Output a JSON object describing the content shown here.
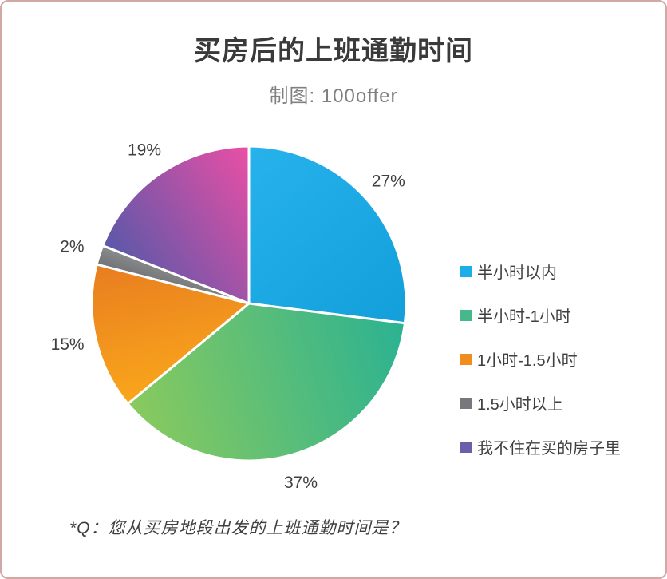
{
  "chart_data": {
    "type": "pie",
    "title": "买房后的上班通勤时间",
    "subtitle": "制图: 100offer",
    "annotation": "*Q：您从买房地段出发的上班通勤时间是？",
    "legend_position": "right",
    "start_angle_deg": 0,
    "direction": "clockwise",
    "units": "%",
    "slices": [
      {
        "label": "半小时以内",
        "value": 27,
        "percent_label": "27%",
        "color_start": "#27b2ec",
        "color_end": "#129fda",
        "legend_color": "#1caee9"
      },
      {
        "label": "半小时-1小时",
        "value": 37,
        "percent_label": "37%",
        "color_start": "#2bb292",
        "color_end": "#8aca5e",
        "legend_color": "#45b98b"
      },
      {
        "label": "1小时-1.5小时",
        "value": 15,
        "percent_label": "15%",
        "color_start": "#f9a61b",
        "color_end": "#e87d20",
        "legend_color": "#f18c1e"
      },
      {
        "label": "1.5小时以上",
        "value": 2,
        "percent_label": "2%",
        "color_start": "#717275",
        "color_end": "#8a8c8e",
        "legend_color": "#77787b"
      },
      {
        "label": "我不住在买的房子里",
        "value": 19,
        "percent_label": "19%",
        "color_start": "#5a58a9",
        "color_end": "#ea4fa5",
        "legend_color": "#6c5ea8"
      }
    ]
  }
}
